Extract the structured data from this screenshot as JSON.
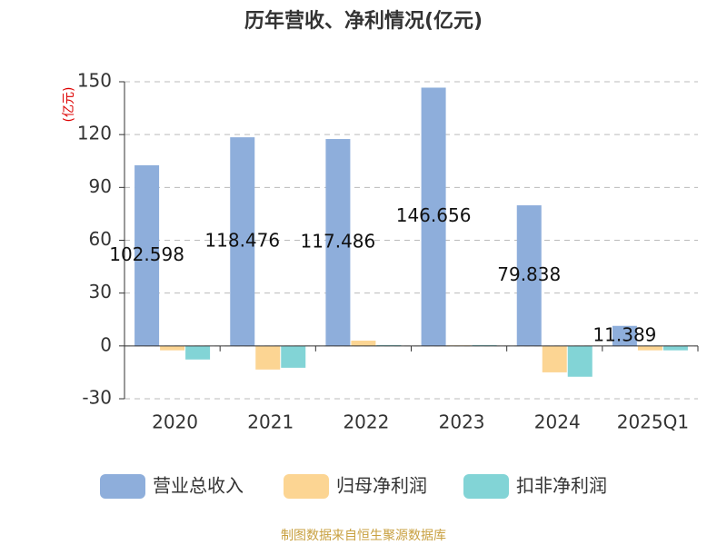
{
  "chart_data": {
    "type": "bar",
    "title": "历年营收、净利情况(亿元)",
    "y_label": "(亿元)",
    "categories": [
      "2020",
      "2021",
      "2022",
      "2023",
      "2024",
      "2025Q1"
    ],
    "series": [
      {
        "name": "营业总收入",
        "color": "#8eaedb",
        "values": [
          102.598,
          118.476,
          117.486,
          146.656,
          79.838,
          11.389
        ],
        "show_labels": true
      },
      {
        "name": "归母净利润",
        "color": "#fcd593",
        "values": [
          -2.5,
          -13.4,
          3.0,
          0.3,
          -15.0,
          -2.5
        ]
      },
      {
        "name": "扣非净利润",
        "color": "#82d4d6",
        "values": [
          -7.7,
          -12.4,
          0.5,
          0.5,
          -17.5,
          -2.5
        ]
      }
    ],
    "ylim": [
      -30,
      150
    ],
    "yticks": [
      -30,
      0,
      30,
      60,
      90,
      120,
      150
    ],
    "grid": true,
    "legend": "bottom",
    "source": "制图数据来自恒生聚源数据库"
  }
}
